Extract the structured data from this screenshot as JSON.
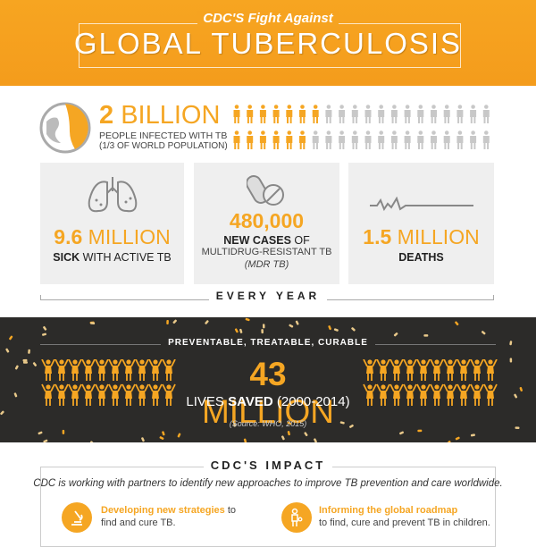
{
  "header": {
    "subtitle": "CDC'S Fight Against",
    "title": "GLOBAL TUBERCULOSIS"
  },
  "infected": {
    "number": "2",
    "unit": "BILLION",
    "line1": "PEOPLE INFECTED WITH TB",
    "line2": "(1/3 OF WORLD POPULATION)",
    "people_per_row": 20,
    "highlighted_row1": 7,
    "highlighted_row2": 6
  },
  "stats": [
    {
      "icon": "lungs-icon",
      "number": "9.6",
      "unit": "MILLION",
      "label_bold": "SICK",
      "label_rest": " WITH ACTIVE TB"
    },
    {
      "icon": "pills-icon",
      "number": "480,000",
      "label_bold": "NEW CASES",
      "label_rest": " OF",
      "line2": "MULTIDRUG-RESISTANT TB",
      "line3": "(MDR TB)"
    },
    {
      "icon": "heartbeat-icon",
      "number": "1.5",
      "unit": "MILLION",
      "label_bold": "DEATHS"
    }
  ],
  "every_year": "EVERY YEAR",
  "saved": {
    "tagline": "PREVENTABLE, TREATABLE, CURABLE",
    "number": "43",
    "unit": "MILLION",
    "lives": "LIVES ",
    "saved_word": "SAVED",
    "years": " (2000-2014)",
    "source": "(Source: WHO, 2015)"
  },
  "impact": {
    "title": "CDC'S IMPACT",
    "description": "CDC is working with partners to identify new approaches to improve TB prevention and care worldwide.",
    "items": [
      {
        "icon": "microscope-icon",
        "bold": "Developing new strategies",
        "rest": " to",
        "line2": "find and cure TB."
      },
      {
        "icon": "child-icon",
        "bold": "Informing the global roadmap",
        "line2": "to find, cure and prevent TB in children."
      }
    ]
  },
  "colors": {
    "accent": "#f5a623",
    "dark": "#2c2b29",
    "card": "#efefef",
    "inactive": "#c8c8c8"
  }
}
